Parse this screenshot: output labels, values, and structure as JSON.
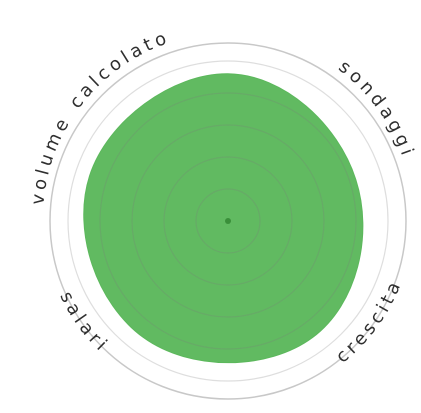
{
  "chart_data": {
    "type": "radar",
    "title": "",
    "categories": [
      "calcolato",
      "sondaggi",
      "crescita",
      "salari",
      "volume"
    ],
    "values": [
      0.92,
      0.84,
      0.9,
      0.9,
      0.91
    ],
    "rmax": 1.0,
    "rings": [
      0.2,
      0.4,
      0.6,
      0.8,
      1.0
    ],
    "grid": true,
    "legend": "none"
  },
  "colors": {
    "fill": "#5cb85c",
    "ring": "#7a7a7a",
    "outer_ring": "#c8c8c8",
    "center_dot": "#3a8f3a"
  }
}
